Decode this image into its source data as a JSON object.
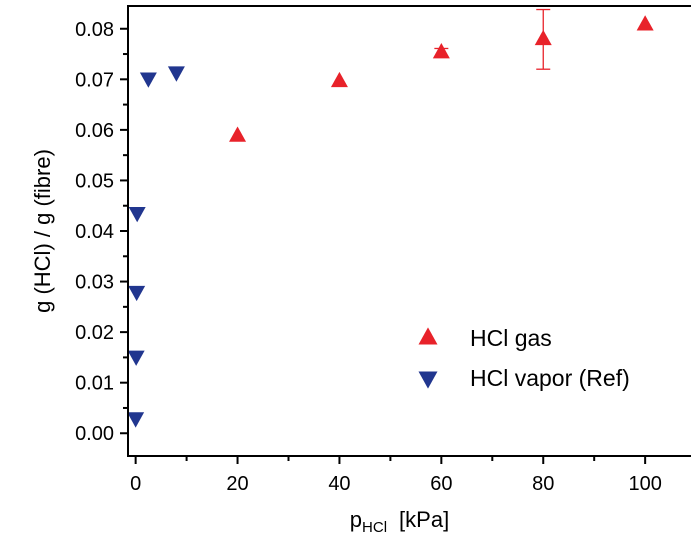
{
  "chart_data": {
    "type": "scatter",
    "xlabel_main": "p",
    "xlabel_sub": "HCl",
    "xlabel_unit": "[kPa]",
    "ylabel": "g (HCl) / g (fibre)",
    "xlim": [
      -1.5,
      109
    ],
    "ylim": [
      -0.0045,
      0.0845
    ],
    "xticks": [
      0,
      20,
      40,
      60,
      80,
      100
    ],
    "xtick_labels": [
      "0",
      "20",
      "40",
      "60",
      "80",
      "100"
    ],
    "yticks": [
      0.0,
      0.01,
      0.02,
      0.03,
      0.04,
      0.05,
      0.06,
      0.07,
      0.08
    ],
    "ytick_labels": [
      "0.00",
      "0.01",
      "0.02",
      "0.03",
      "0.04",
      "0.05",
      "0.06",
      "0.07",
      "0.08"
    ],
    "grid": false,
    "legend_position": "bottom-right",
    "series": [
      {
        "name": "HCl gas",
        "marker": "triangle-up",
        "color": "#e8222a",
        "x": [
          20,
          40,
          60,
          80,
          100
        ],
        "y": [
          0.0588,
          0.0696,
          0.0753,
          0.0779,
          0.0808
        ],
        "err_low": [
          0,
          0,
          0.0008,
          0.0059,
          0
        ],
        "err_high": [
          0,
          0,
          0.0008,
          0.0059,
          0
        ]
      },
      {
        "name": "HCl vapor (Ref)",
        "marker": "triangle-down",
        "color": "#21368f",
        "x": [
          2.5,
          8.0,
          0.3,
          0.2,
          0.1,
          0.0
        ],
        "y": [
          0.0702,
          0.0714,
          0.0436,
          0.028,
          0.0152,
          0.003
        ]
      }
    ]
  }
}
